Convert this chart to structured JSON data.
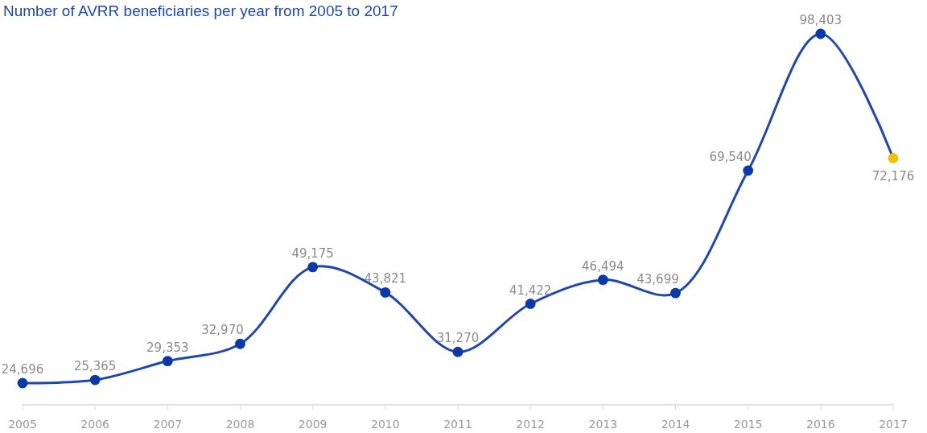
{
  "chart_data": {
    "type": "line",
    "title": "Number of AVRR beneficiaries per year from 2005 to 2017",
    "categories": [
      "2005",
      "2006",
      "2007",
      "2008",
      "2009",
      "2010",
      "2011",
      "2012",
      "2013",
      "2014",
      "2015",
      "2016",
      "2017"
    ],
    "series": [
      {
        "color": "#1f47b3",
        "colors": [
          "#0b3aa8",
          "#0b3aa8",
          "#0b3aa8",
          "#0b3aa8",
          "#0b3aa8",
          "#0b3aa8",
          "#0b3aa8",
          "#0b3aa8",
          "#0b3aa8",
          "#0b3aa8",
          "#0b3aa8",
          "#0b3aa8",
          "#f5c000"
        ],
        "values": [
          24696,
          25365,
          29353,
          32970,
          49175,
          43821,
          31270,
          41422,
          46494,
          43699,
          69540,
          98403,
          72176
        ],
        "value_labels": [
          "24,696",
          "25,365",
          "29,353",
          "32,970",
          "49,175",
          "43,821",
          "31,270",
          "41,422",
          "46,494",
          "43,699",
          "69,540",
          "98,403",
          "72,176"
        ]
      }
    ],
    "marker": "circle",
    "line_style": "solid"
  }
}
